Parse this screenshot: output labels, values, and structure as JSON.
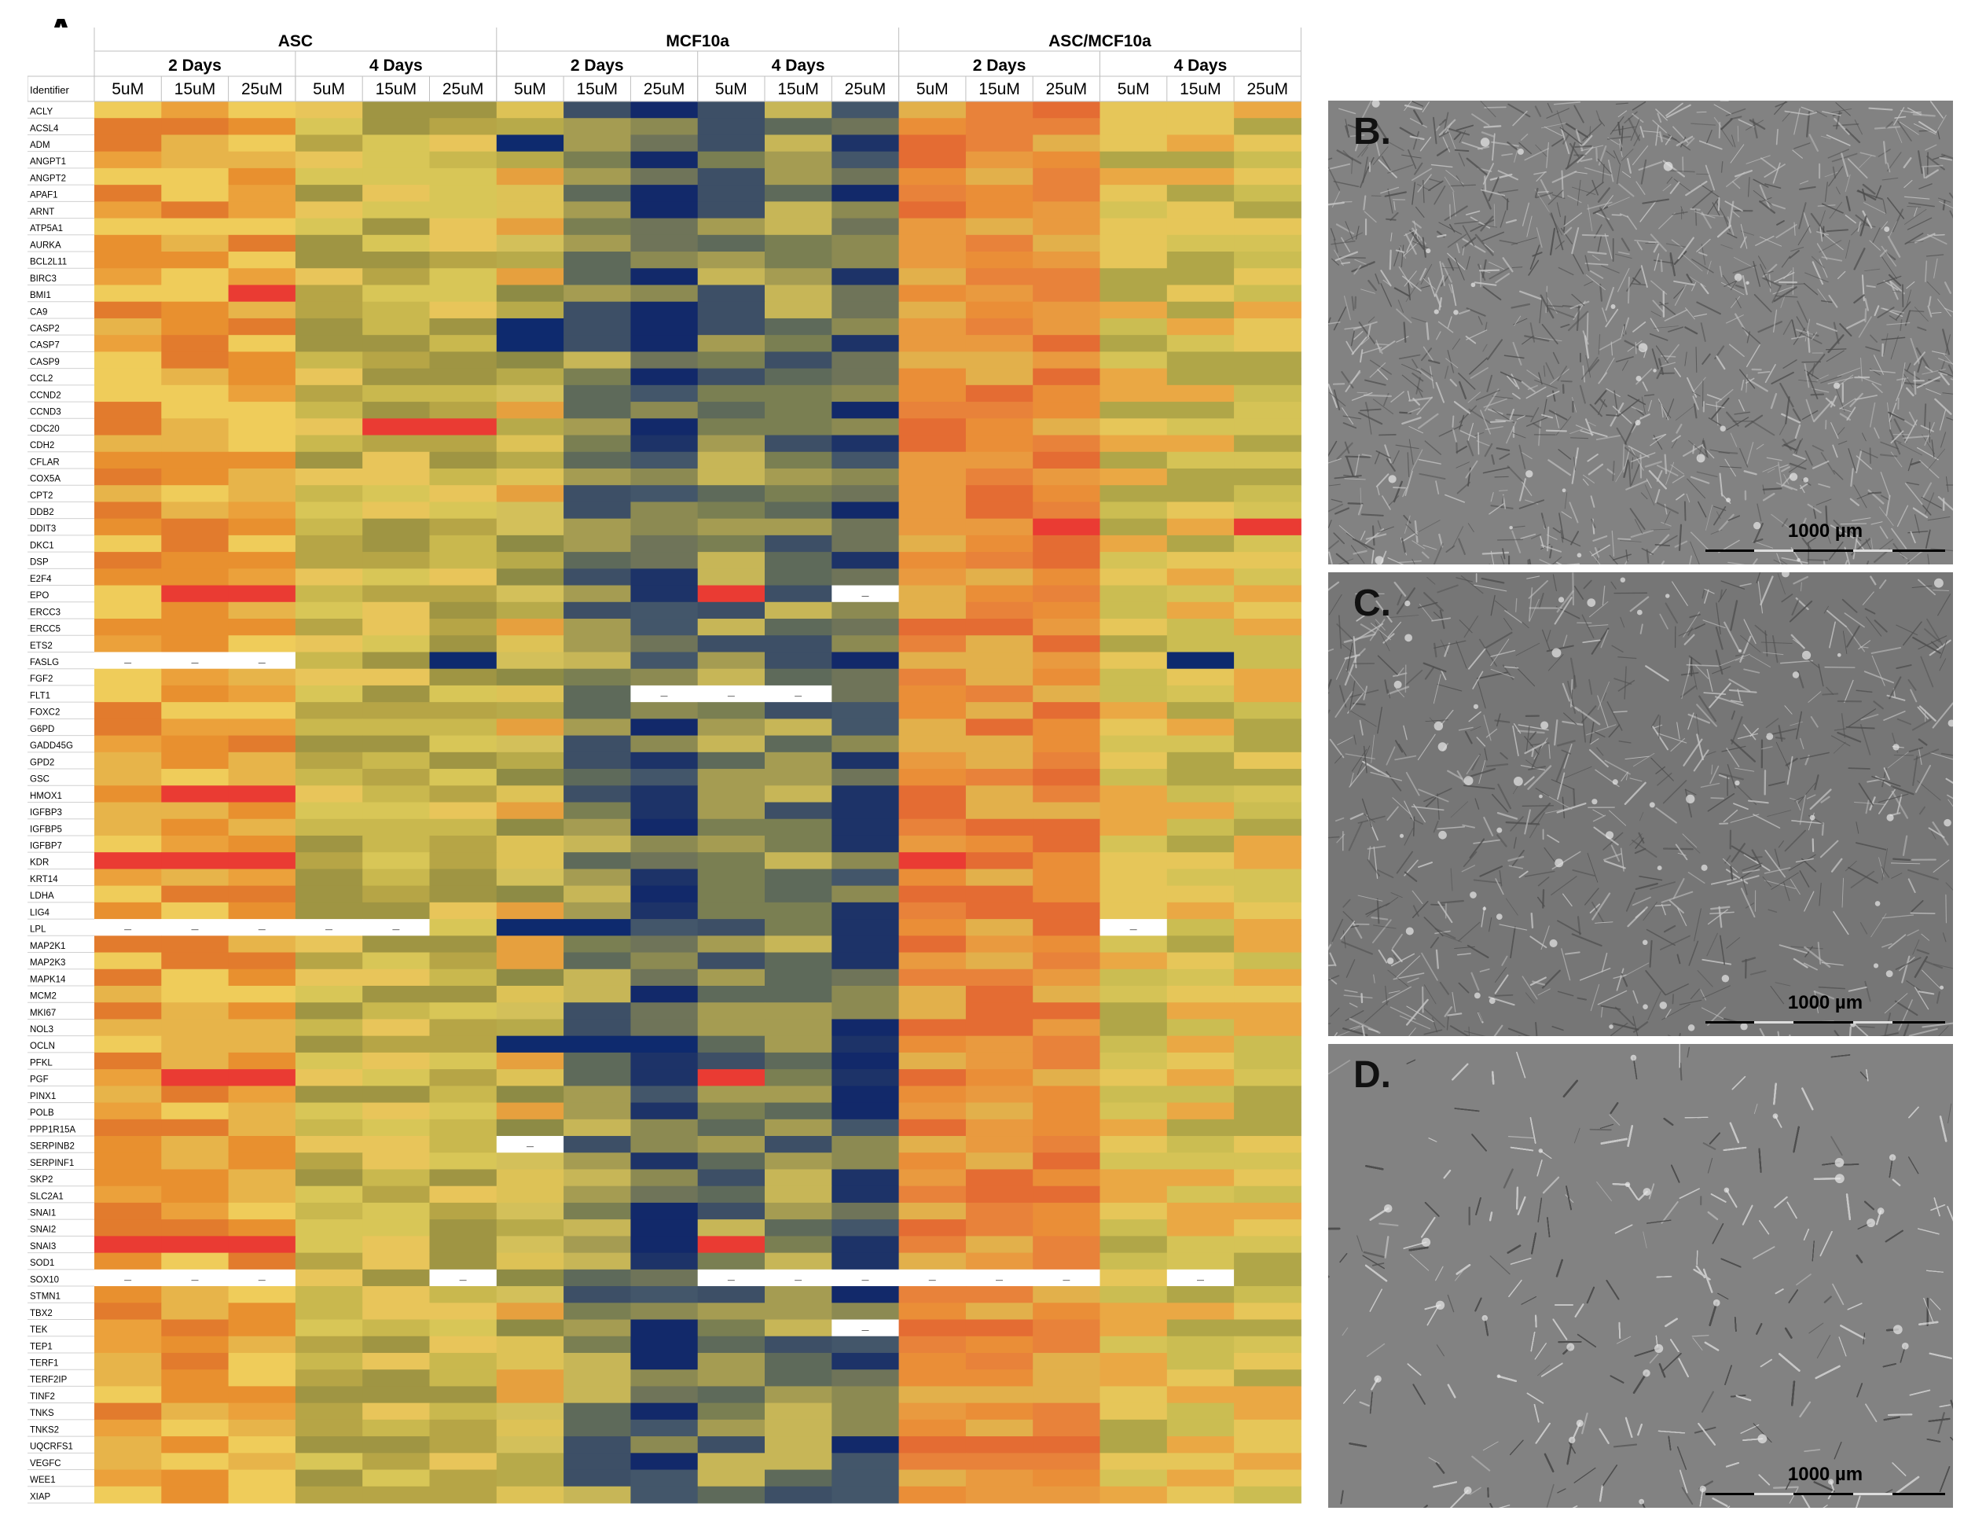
{
  "panels": {
    "a": "A.",
    "b": "B.",
    "c": "C.",
    "d": "D."
  },
  "scale_label": "1000 µm",
  "chart_data": {
    "type": "heatmap",
    "identifier_label": "Identifier",
    "groups": [
      {
        "name": "ASC",
        "times": [
          {
            "name": "2 Days",
            "doses": [
              "5uM",
              "15uM",
              "25uM"
            ]
          },
          {
            "name": "4 Days",
            "doses": [
              "5uM",
              "15uM",
              "25uM"
            ]
          }
        ]
      },
      {
        "name": "MCF10a",
        "times": [
          {
            "name": "2 Days",
            "doses": [
              "5uM",
              "15uM",
              "25uM"
            ]
          },
          {
            "name": "4 Days",
            "doses": [
              "5uM",
              "15uM",
              "25uM"
            ]
          }
        ]
      },
      {
        "name": "ASC/MCF10a",
        "times": [
          {
            "name": "2 Days",
            "doses": [
              "5uM",
              "15uM",
              "25uM"
            ]
          },
          {
            "name": "4 Days",
            "doses": [
              "5uM",
              "15uM",
              "25uM"
            ]
          }
        ]
      }
    ],
    "missing_mark": "—",
    "genes": [
      "ACLY",
      "ACSL4",
      "ADM",
      "ANGPT1",
      "ANGPT2",
      "APAF1",
      "ARNT",
      "ATP5A1",
      "AURKA",
      "BCL2L11",
      "BIRC3",
      "BMI1",
      "CA9",
      "CASP2",
      "CASP7",
      "CASP9",
      "CCL2",
      "CCND2",
      "CCND3",
      "CDC20",
      "CDH2",
      "CFLAR",
      "COX5A",
      "CPT2",
      "DDB2",
      "DDIT3",
      "DKC1",
      "DSP",
      "E2F4",
      "EPO",
      "ERCC3",
      "ERCC5",
      "ETS2",
      "FASLG",
      "FGF2",
      "FLT1",
      "FOXC2",
      "G6PD",
      "GADD45G",
      "GPD2",
      "GSC",
      "HMOX1",
      "IGFBP3",
      "IGFBP5",
      "IGFBP7",
      "KDR",
      "KRT14",
      "LDHA",
      "LIG4",
      "LPL",
      "MAP2K1",
      "MAP2K3",
      "MAPK14",
      "MCM2",
      "MKI67",
      "NOL3",
      "OCLN",
      "PFKL",
      "PGF",
      "PINX1",
      "POLB",
      "PPP1R15A",
      "SERPINB2",
      "SERPINF1",
      "SKP2",
      "SLC2A1",
      "SNAI1",
      "SNAI2",
      "SNAI3",
      "SOD1",
      "SOX10",
      "STMN1",
      "TBX2",
      "TEK",
      "TEP1",
      "TERF1",
      "TERF2IP",
      "TINF2",
      "TNKS",
      "TNKS2",
      "UQCRFS1",
      "VEGFC",
      "WEE1",
      "XIAP"
    ],
    "color_scale": {
      "low": "#0e2a6e",
      "mid_low": "#8f8c3a",
      "mid": "#c9bb4a",
      "mid_high": "#ecd25e",
      "high": "#e8702e",
      "max": "#ea3b33"
    },
    "legend": "none",
    "grid": true
  }
}
